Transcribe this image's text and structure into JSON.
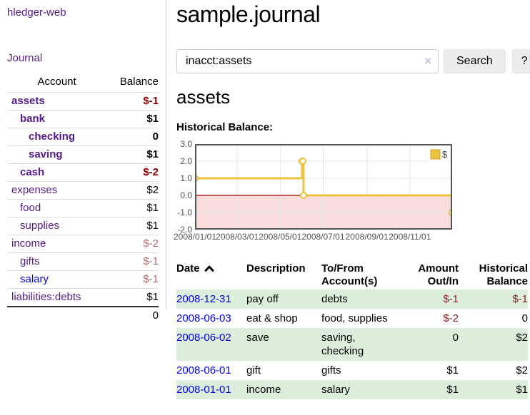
{
  "sidebar": {
    "brand": "hledger-web",
    "journal_link": "Journal",
    "account_header": "Account",
    "balance_header": "Balance",
    "accounts": [
      {
        "name": "assets",
        "balance": "$-1",
        "indent": 1,
        "bold": true,
        "link_color": "#551a8b",
        "balance_color": "#8b0000"
      },
      {
        "name": "bank",
        "balance": "$1",
        "indent": 2,
        "bold": true,
        "link_color": "#551a8b",
        "balance_color": "#000000"
      },
      {
        "name": "checking",
        "balance": "0",
        "indent": 3,
        "bold": true,
        "link_color": "#551a8b",
        "balance_color": "#000000"
      },
      {
        "name": "saving",
        "balance": "$1",
        "indent": 3,
        "bold": true,
        "link_color": "#551a8b",
        "balance_color": "#000000"
      },
      {
        "name": "cash",
        "balance": "$-2",
        "indent": 2,
        "bold": true,
        "link_color": "#551a8b",
        "balance_color": "#8b0000"
      },
      {
        "name": "expenses",
        "balance": "$2",
        "indent": 1,
        "bold": false,
        "link_color": "#551a8b",
        "balance_color": "#000000"
      },
      {
        "name": "food",
        "balance": "$1",
        "indent": 2,
        "bold": false,
        "link_color": "#551a8b",
        "balance_color": "#000000"
      },
      {
        "name": "supplies",
        "balance": "$1",
        "indent": 2,
        "bold": false,
        "link_color": "#551a8b",
        "balance_color": "#000000"
      },
      {
        "name": "income",
        "balance": "$-2",
        "indent": 1,
        "bold": false,
        "link_color": "#551a8b",
        "balance_color": "#b36b6b"
      },
      {
        "name": "gifts",
        "balance": "$-1",
        "indent": 2,
        "bold": false,
        "link_color": "#551a8b",
        "balance_color": "#b36b6b"
      },
      {
        "name": "salary",
        "balance": "$-1",
        "indent": 2,
        "bold": false,
        "link_color": "#0000ee",
        "balance_color": "#b36b6b"
      },
      {
        "name": "liabilities:debts",
        "balance": "$1",
        "indent": 1,
        "bold": false,
        "link_color": "#551a8b",
        "balance_color": "#000000"
      }
    ],
    "total": "0"
  },
  "header": {
    "title": "sample.journal"
  },
  "search": {
    "value": "inacct:assets",
    "clear_icon": "×",
    "button_label": "Search",
    "help_label": "?"
  },
  "account_page": {
    "title": "assets",
    "chart_label": "Historical Balance:"
  },
  "chart_data": {
    "type": "line",
    "step": true,
    "title": "Historical Balance",
    "series": [
      {
        "name": "$",
        "color": "#EDC240",
        "points": [
          [
            "2008-01-01",
            1
          ],
          [
            "2008-06-01",
            2
          ],
          [
            "2008-06-02",
            2
          ],
          [
            "2008-06-03",
            0
          ],
          [
            "2008-12-31",
            -1
          ]
        ]
      }
    ],
    "x_range": [
      "2008-01-01",
      "2008-12-31"
    ],
    "x_ticks": [
      "2008/01/01",
      "2008/03/01",
      "2008/05/01",
      "2008/07/01",
      "2008/09/01",
      "2008/11/01"
    ],
    "y_ticks": [
      3.0,
      2.0,
      1.0,
      0.0,
      -1.0,
      -2.0
    ],
    "ylim": [
      -2.0,
      3.0
    ],
    "grid": true,
    "legend_position": "top-right",
    "negative_region_color": "#f9dddd",
    "zero_line_color": "#aa0000",
    "frame_color": "#545454",
    "grid_color": "#e6e6e6"
  },
  "register": {
    "columns": [
      {
        "lines": [
          "Date"
        ],
        "align": "left",
        "sort_icon": "chevron-up",
        "sortable": true
      },
      {
        "lines": [
          "Description"
        ],
        "align": "left",
        "sortable": false
      },
      {
        "lines": [
          "To/From",
          "Account(s)"
        ],
        "align": "left",
        "sortable": false
      },
      {
        "lines": [
          "Amount",
          "Out/In"
        ],
        "align": "right",
        "sortable": false
      },
      {
        "lines": [
          "Historical",
          "Balance"
        ],
        "align": "right",
        "sortable": false
      }
    ],
    "rows": [
      {
        "date": "2008-12-31",
        "description": "pay off",
        "accounts": [
          "debts"
        ],
        "amount": "$-1",
        "amount_negative": true,
        "balance": "$-1",
        "balance_negative": true,
        "shaded": true
      },
      {
        "date": "2008-06-03",
        "description": "eat & shop",
        "accounts": [
          "food",
          "supplies"
        ],
        "amount": "$-2",
        "amount_negative": true,
        "balance": "0",
        "balance_negative": false,
        "shaded": false
      },
      {
        "date": "2008-06-02",
        "description": "save",
        "accounts": [
          "saving",
          "checking"
        ],
        "amount": "0",
        "amount_negative": false,
        "balance": "$2",
        "balance_negative": false,
        "shaded": true
      },
      {
        "date": "2008-06-01",
        "description": "gift",
        "accounts": [
          "gifts"
        ],
        "amount": "$1",
        "amount_negative": false,
        "balance": "$2",
        "balance_negative": false,
        "shaded": false
      },
      {
        "date": "2008-01-01",
        "description": "income",
        "accounts": [
          "salary"
        ],
        "amount": "$1",
        "amount_negative": false,
        "balance": "$1",
        "balance_negative": false,
        "shaded": true
      }
    ]
  },
  "colors": {
    "link_purple": "#551a8b",
    "link_blue": "#0000ee",
    "negative_strong": "#8b0000",
    "negative_soft": "#b36b6b",
    "row_green": "#ddeedd",
    "accent_gold": "#EDC240"
  }
}
